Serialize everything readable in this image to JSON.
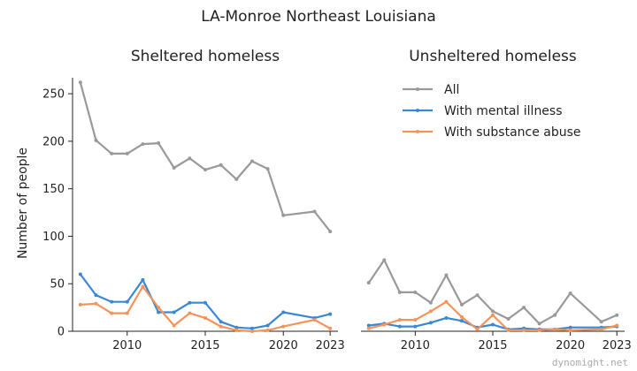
{
  "figure": {
    "title": "LA-Monroe Northeast Louisiana",
    "ylabel": "Number of people",
    "watermark": "dynomight.net"
  },
  "legend": {
    "placement": "top-right of right panel",
    "entries": [
      {
        "label": "All",
        "color": "#999999"
      },
      {
        "label": "With mental illness",
        "color": "#3a87d6"
      },
      {
        "label": "With substance abuse",
        "color": "#f4935a"
      }
    ]
  },
  "chart_data": [
    {
      "type": "line",
      "title": "Sheltered homeless",
      "xlabel": "",
      "ylabel": "Number of people",
      "xlim": [
        2006.5,
        2023.5
      ],
      "ylim": [
        0,
        265
      ],
      "xticks": [
        2010,
        2015,
        2020,
        2023
      ],
      "yticks": [
        0,
        50,
        100,
        150,
        200,
        250
      ],
      "x": [
        2007,
        2008,
        2009,
        2010,
        2011,
        2012,
        2013,
        2014,
        2015,
        2016,
        2017,
        2018,
        2019,
        2020,
        2022,
        2023
      ],
      "series": [
        {
          "name": "All",
          "color": "#999999",
          "values": [
            262,
            201,
            187,
            187,
            197,
            198,
            172,
            182,
            170,
            175,
            160,
            179,
            171,
            122,
            126,
            105
          ]
        },
        {
          "name": "With mental illness",
          "color": "#3a87d6",
          "values": [
            60,
            38,
            31,
            31,
            54,
            20,
            20,
            30,
            30,
            10,
            4,
            3,
            6,
            20,
            14,
            18
          ]
        },
        {
          "name": "With substance abuse",
          "color": "#f4935a",
          "values": [
            28,
            29,
            19,
            19,
            47,
            25,
            6,
            19,
            14,
            5,
            1,
            0,
            1,
            5,
            12,
            3
          ]
        }
      ]
    },
    {
      "type": "line",
      "title": "Unsheltered homeless",
      "xlabel": "",
      "ylabel": "",
      "xlim": [
        2006.5,
        2023.5
      ],
      "ylim": [
        0,
        265
      ],
      "xticks": [
        2010,
        2015,
        2020,
        2023
      ],
      "yticks": [],
      "x": [
        2007,
        2008,
        2009,
        2010,
        2011,
        2012,
        2013,
        2014,
        2015,
        2016,
        2017,
        2018,
        2019,
        2020,
        2022,
        2023
      ],
      "series": [
        {
          "name": "All",
          "color": "#999999",
          "values": [
            51,
            75,
            41,
            41,
            30,
            59,
            28,
            38,
            21,
            13,
            25,
            8,
            17,
            40,
            10,
            17
          ]
        },
        {
          "name": "With mental illness",
          "color": "#3a87d6",
          "values": [
            6,
            8,
            5,
            5,
            9,
            14,
            11,
            4,
            7,
            2,
            3,
            2,
            2,
            4,
            4,
            5
          ]
        },
        {
          "name": "With substance abuse",
          "color": "#f4935a",
          "values": [
            3,
            7,
            12,
            12,
            21,
            31,
            15,
            2,
            17,
            1,
            1,
            1,
            2,
            1,
            2,
            6
          ]
        }
      ]
    }
  ]
}
